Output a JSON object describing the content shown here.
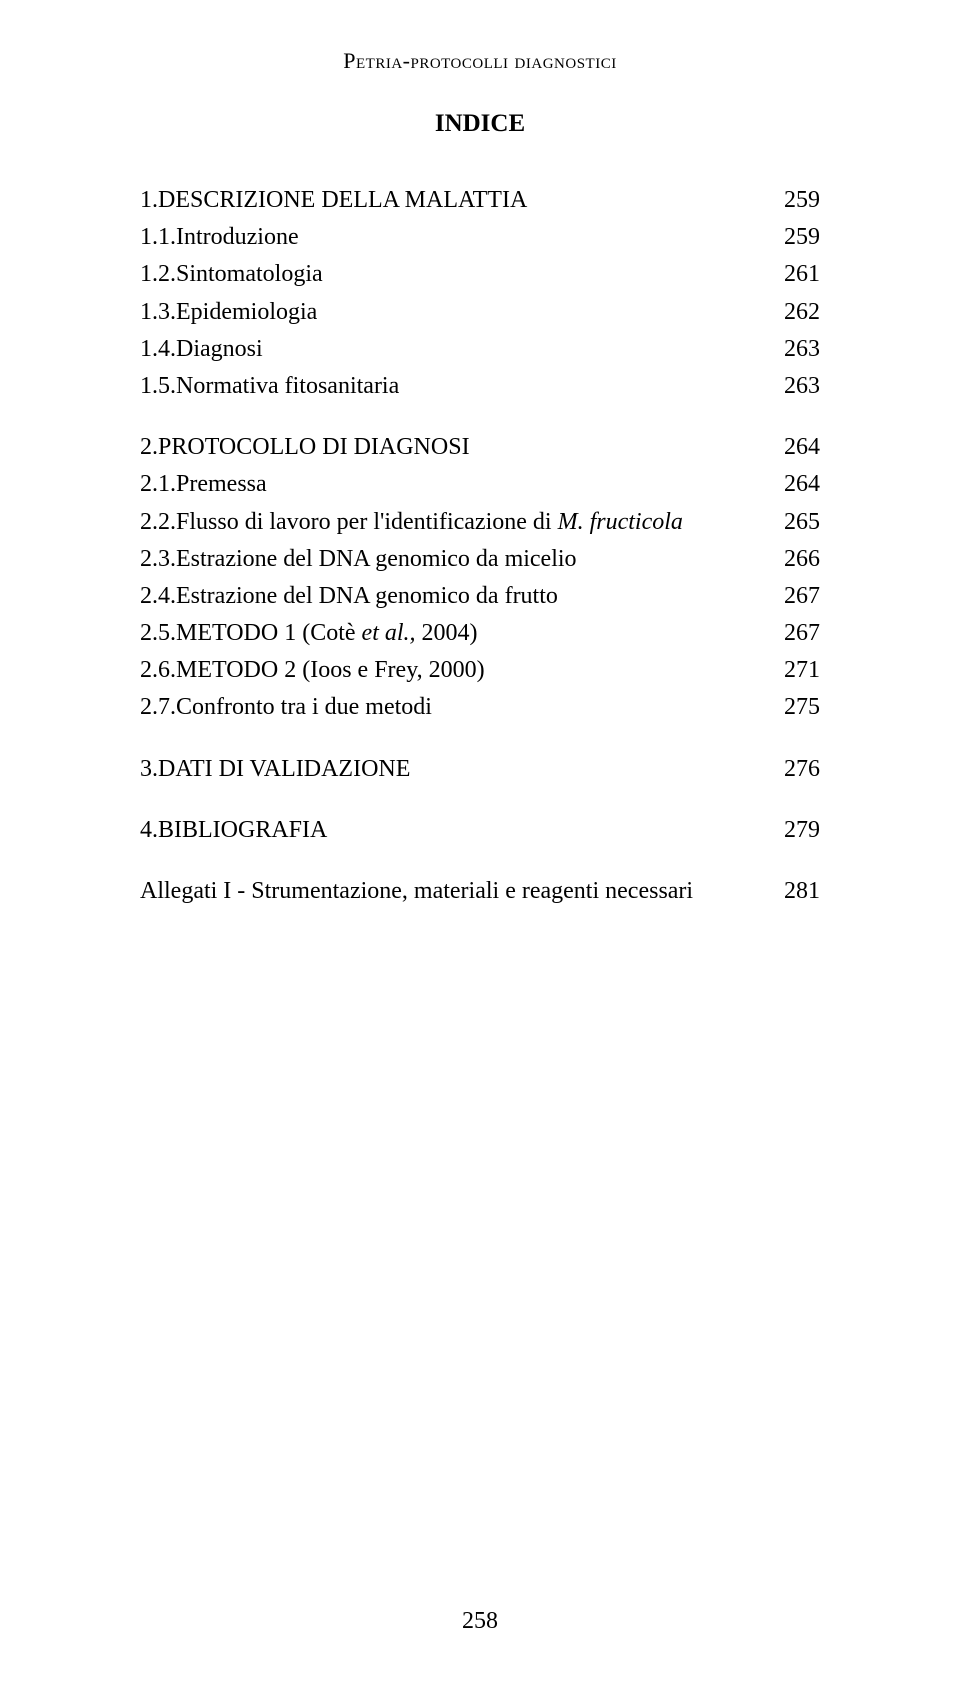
{
  "running_head": "Petria-protocolli diagnostici",
  "title": "INDICE",
  "toc": {
    "sections": [
      {
        "rows": [
          {
            "label": "1.DESCRIZIONE DELLA MALATTIA",
            "page": "259"
          },
          {
            "label": "1.1.Introduzione",
            "page": "259"
          },
          {
            "label": "1.2.Sintomatologia",
            "page": "261"
          },
          {
            "label": "1.3.Epidemiologia",
            "page": "262"
          },
          {
            "label": "1.4.Diagnosi",
            "page": "263"
          },
          {
            "label": "1.5.Normativa fitosanitaria",
            "page": "263"
          }
        ]
      },
      {
        "rows": [
          {
            "label": "2.PROTOCOLLO DI DIAGNOSI",
            "page": "264"
          },
          {
            "label": "2.1.Premessa",
            "page": "264"
          },
          {
            "label_pre": "2.2.Flusso di lavoro per l'identificazione di ",
            "label_italic": "M. fructicola",
            "page": "265"
          },
          {
            "label": "2.3.Estrazione del DNA genomico da micelio",
            "page": "266"
          },
          {
            "label": "2.4.Estrazione del DNA genomico da frutto",
            "page": "267"
          },
          {
            "label_pre": "2.5.METODO 1 (Cotè ",
            "label_italic": "et al.,",
            "label_post": " 2004)",
            "page": "267"
          },
          {
            "label": "2.6.METODO 2 (Ioos e Frey, 2000)",
            "page": "271"
          },
          {
            "label": "2.7.Confronto tra i due metodi",
            "page": "275"
          }
        ]
      },
      {
        "rows": [
          {
            "label": "3.DATI DI VALIDAZIONE",
            "page": "276"
          }
        ]
      },
      {
        "rows": [
          {
            "label": "4.BIBLIOGRAFIA",
            "page": "279"
          }
        ]
      },
      {
        "rows": [
          {
            "label": "Allegati I - Strumentazione, materiali e reagenti necessari",
            "page": "281"
          }
        ]
      }
    ]
  },
  "page_number": "258"
}
